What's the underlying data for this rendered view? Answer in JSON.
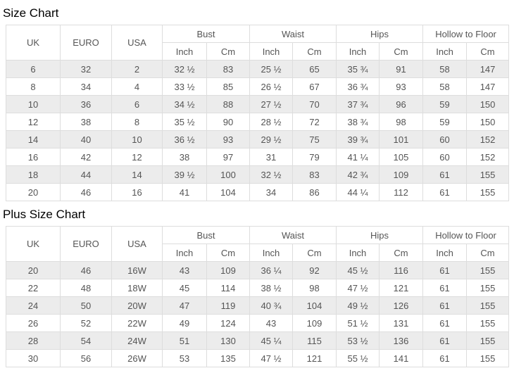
{
  "titles": {
    "size_chart": "Size Chart",
    "plus_size_chart": "Plus Size Chart"
  },
  "header": {
    "size_columns": [
      "UK",
      "EURO",
      "USA"
    ],
    "measurement_groups": [
      "Bust",
      "Waist",
      "Hips",
      "Hollow to Floor"
    ],
    "unit_columns": [
      "Inch",
      "Cm"
    ]
  },
  "size_chart": {
    "rows": [
      [
        "6",
        "32",
        "2",
        "32 ½",
        "83",
        "25 ½",
        "65",
        "35 ¾",
        "91",
        "58",
        "147"
      ],
      [
        "8",
        "34",
        "4",
        "33 ½",
        "85",
        "26 ½",
        "67",
        "36 ¾",
        "93",
        "58",
        "147"
      ],
      [
        "10",
        "36",
        "6",
        "34 ½",
        "88",
        "27 ½",
        "70",
        "37 ¾",
        "96",
        "59",
        "150"
      ],
      [
        "12",
        "38",
        "8",
        "35 ½",
        "90",
        "28 ½",
        "72",
        "38 ¾",
        "98",
        "59",
        "150"
      ],
      [
        "14",
        "40",
        "10",
        "36 ½",
        "93",
        "29 ½",
        "75",
        "39 ¾",
        "101",
        "60",
        "152"
      ],
      [
        "16",
        "42",
        "12",
        "38",
        "97",
        "31",
        "79",
        "41 ¼",
        "105",
        "60",
        "152"
      ],
      [
        "18",
        "44",
        "14",
        "39 ½",
        "100",
        "32 ½",
        "83",
        "42 ¾",
        "109",
        "61",
        "155"
      ],
      [
        "20",
        "46",
        "16",
        "41",
        "104",
        "34",
        "86",
        "44 ¼",
        "112",
        "61",
        "155"
      ]
    ]
  },
  "plus_size_chart": {
    "rows": [
      [
        "20",
        "46",
        "16W",
        "43",
        "109",
        "36 ¼",
        "92",
        "45 ½",
        "116",
        "61",
        "155"
      ],
      [
        "22",
        "48",
        "18W",
        "45",
        "114",
        "38 ½",
        "98",
        "47 ½",
        "121",
        "61",
        "155"
      ],
      [
        "24",
        "50",
        "20W",
        "47",
        "119",
        "40 ¾",
        "104",
        "49 ½",
        "126",
        "61",
        "155"
      ],
      [
        "26",
        "52",
        "22W",
        "49",
        "124",
        "43",
        "109",
        "51 ½",
        "131",
        "61",
        "155"
      ],
      [
        "28",
        "54",
        "24W",
        "51",
        "130",
        "45 ¼",
        "115",
        "53 ½",
        "136",
        "61",
        "155"
      ],
      [
        "30",
        "56",
        "26W",
        "53",
        "135",
        "47 ½",
        "121",
        "55 ½",
        "141",
        "61",
        "155"
      ]
    ]
  },
  "colors": {
    "row_shade": "#ececec",
    "border": "#dddddd",
    "text": "#555555"
  }
}
